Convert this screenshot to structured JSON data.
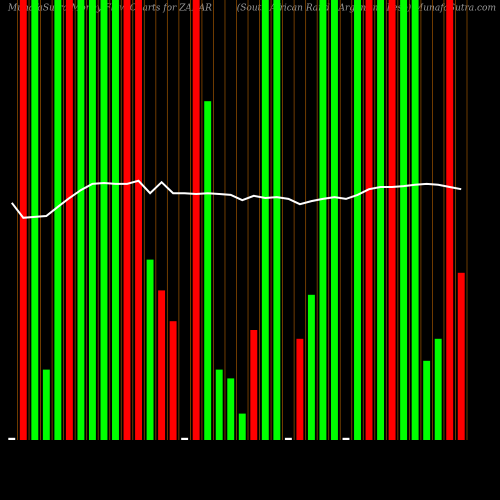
{
  "chart_data": {
    "type": "bar",
    "title": "MunafaSutra Money Flow Charts for ZARAR",
    "subtitle": "(South African Rand / Argentine Peso) MunafaSutra.com",
    "ylim": [
      0,
      100
    ],
    "values": [
      0.5,
      100,
      100,
      16,
      100,
      100,
      100,
      100,
      100,
      100,
      100,
      100,
      41,
      34,
      27,
      0.5,
      100,
      77,
      16,
      14,
      6,
      25,
      100,
      100,
      0.5,
      23,
      33,
      100,
      100,
      0.5,
      100,
      100,
      100,
      100,
      100,
      100,
      18,
      23,
      100,
      38
    ],
    "colors": [
      "#ffffff",
      "#ff0000",
      "#00ff00",
      "#00ff00",
      "#00ff00",
      "#ff0000",
      "#00ff00",
      "#00ff00",
      "#00ff00",
      "#00ff00",
      "#ff0000",
      "#ff0000",
      "#00ff00",
      "#ff0000",
      "#ff0000",
      "#ffffff",
      "#ff0000",
      "#00ff00",
      "#00ff00",
      "#00ff00",
      "#00ff00",
      "#ff0000",
      "#00ff00",
      "#00ff00",
      "#ffffff",
      "#ff0000",
      "#00ff00",
      "#00ff00",
      "#00ff00",
      "#ffffff",
      "#00ff00",
      "#ff0000",
      "#00ff00",
      "#ff0000",
      "#00ff00",
      "#00ff00",
      "#00ff00",
      "#00ff00",
      "#ff0000",
      "#ff0000"
    ],
    "line_values": [
      53.9,
      50.5,
      50.7,
      50.9,
      53,
      55,
      56.8,
      58.2,
      58.4,
      58.2,
      58.2,
      58.9,
      56.1,
      58.6,
      56.1,
      56.1,
      55.9,
      56.1,
      55.9,
      55.7,
      54.5,
      55.5,
      55,
      55.2,
      54.8,
      53.6,
      54.3,
      54.8,
      55.2,
      54.8,
      55.7,
      57,
      57.5,
      57.5,
      57.7,
      58,
      58.2,
      58,
      57.5,
      57
    ],
    "line_color": "#ffffff",
    "separator_color": "#8a4a00"
  }
}
